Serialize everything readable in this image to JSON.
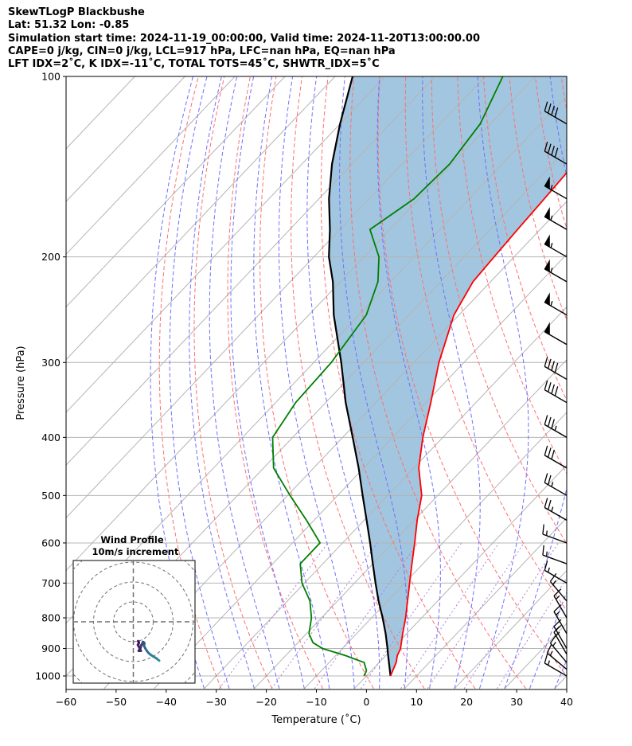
{
  "header": {
    "line1": "SkewTLogP Blackbushe",
    "line2": "Lat: 51.32   Lon: -0.85",
    "line3": "Simulation start time: 2024-11-19_00:00:00, Valid time: 2024-11-20T13:00:00.00",
    "line4": "CAPE=0 j/kg, CIN=0 j/kg, LCL=917 hPa, LFC=nan hPa, EQ=nan hPa",
    "line5": "LFT IDX=2˚C, K IDX=-11˚C, TOTAL TOTS=45˚C, SHWTR_IDX=5˚C"
  },
  "chart_data": {
    "type": "skewt-logp",
    "xlabel": "Temperature (˚C)",
    "ylabel": "Pressure (hPa)",
    "xlim": [
      -60,
      40
    ],
    "ylim": [
      1050,
      100
    ],
    "y_log_scale": true,
    "x_ticks": [
      "−60",
      "−50",
      "−40",
      "−30",
      "−20",
      "−10",
      "0",
      "10",
      "20",
      "30",
      "40"
    ],
    "y_ticks": [
      "1000",
      "900",
      "800",
      "700",
      "600",
      "500",
      "400",
      "300",
      "200",
      "100"
    ],
    "grid": true,
    "colors": {
      "temperature": "#ff0000",
      "dewpoint": "#008000",
      "parcel": "#000000",
      "cape_fill": "#a2c6e0",
      "dry_adiabats": "#ff6f6f",
      "moist_adiabats": "#6f6fff",
      "isotherms": "#b4b4b4",
      "mixing_ratio": "#b37fd6"
    },
    "series": [
      {
        "role": "temperature",
        "p": [
          1000,
          950,
          925,
          900,
          850,
          800,
          750,
          700,
          650,
          600,
          550,
          500,
          450,
          400,
          350,
          300,
          250,
          220,
          200,
          180,
          160,
          140,
          120,
          100
        ],
        "t": [
          4.8,
          3.4,
          2.3,
          1.6,
          -0.8,
          -3.2,
          -6.0,
          -9.0,
          -12.2,
          -15.6,
          -19.4,
          -23.2,
          -29.0,
          -34.0,
          -39.0,
          -45.0,
          -51.0,
          -53.5,
          -54.0,
          -54.5,
          -55.0,
          -55.6,
          -57.0,
          -59.0
        ]
      },
      {
        "role": "dewpoint",
        "p": [
          1000,
          980,
          950,
          925,
          900,
          880,
          850,
          800,
          750,
          700,
          650,
          600,
          550,
          500,
          450,
          400,
          350,
          300,
          250,
          220,
          200,
          180,
          160,
          140,
          120,
          100
        ],
        "t": [
          -0.5,
          -1.0,
          -3.0,
          -8.0,
          -14.0,
          -17.0,
          -19.5,
          -22.0,
          -25.5,
          -30.5,
          -34.5,
          -34.5,
          -41.5,
          -49.5,
          -58.0,
          -64.0,
          -66.0,
          -66.5,
          -68.5,
          -72.5,
          -77.0,
          -84.0,
          -81.0,
          -80.5,
          -82.0,
          -86.5
        ]
      },
      {
        "role": "parcel",
        "p": [
          1000,
          917,
          900,
          850,
          800,
          750,
          700,
          650,
          600,
          550,
          500,
          450,
          400,
          350,
          300,
          250,
          220,
          200,
          180,
          160,
          140,
          120,
          100
        ],
        "t": [
          4.8,
          0.0,
          -1.0,
          -4.2,
          -7.8,
          -11.8,
          -15.8,
          -20.0,
          -24.5,
          -29.5,
          -35.0,
          -41.0,
          -48.0,
          -56.0,
          -64.5,
          -75.0,
          -81.5,
          -87.0,
          -92.0,
          -98.0,
          -104.0,
          -110.0,
          -116.5
        ]
      }
    ],
    "wind_barbs": {
      "p": [
        100,
        120,
        140,
        160,
        180,
        200,
        220,
        250,
        280,
        320,
        350,
        400,
        450,
        500,
        550,
        600,
        650,
        700,
        750,
        800,
        850,
        900,
        920,
        950,
        975,
        1000
      ],
      "speed_kt": [
        40,
        40,
        40,
        55,
        55,
        55,
        55,
        55,
        50,
        40,
        40,
        35,
        30,
        25,
        25,
        15,
        15,
        15,
        15,
        15,
        15,
        15,
        15,
        15,
        15,
        15
      ],
      "direction_deg": [
        300,
        300,
        300,
        300,
        300,
        300,
        300,
        300,
        300,
        300,
        300,
        300,
        300,
        300,
        300,
        290,
        290,
        300,
        320,
        330,
        330,
        330,
        330,
        320,
        310,
        300
      ]
    },
    "hodograph": {
      "title": "Wind Profile",
      "subtitle": "10m/s increment",
      "ring_step_ms": 10,
      "u": [
        13,
        11.5,
        10,
        8.5,
        7.5,
        6.8,
        6.0,
        5.3,
        5.6,
        5.2,
        4.8,
        4.5,
        4.0,
        3.8,
        3.6,
        3.2,
        3.8,
        2.7,
        3.3,
        2.3,
        2.8,
        2.7,
        2.4
      ],
      "v": [
        -19.5,
        -18.3,
        -17.4,
        -16.4,
        -15.5,
        -14.6,
        -13.3,
        -11.9,
        -10.8,
        -10.3,
        -10.1,
        -11.0,
        -11.7,
        -12.5,
        -13.2,
        -13.7,
        -14.6,
        -14.6,
        -13.6,
        -11.6,
        -10.7,
        -10.1,
        -9.7
      ],
      "color_start": "#2d8aa0",
      "color_end": "#44105a"
    }
  }
}
